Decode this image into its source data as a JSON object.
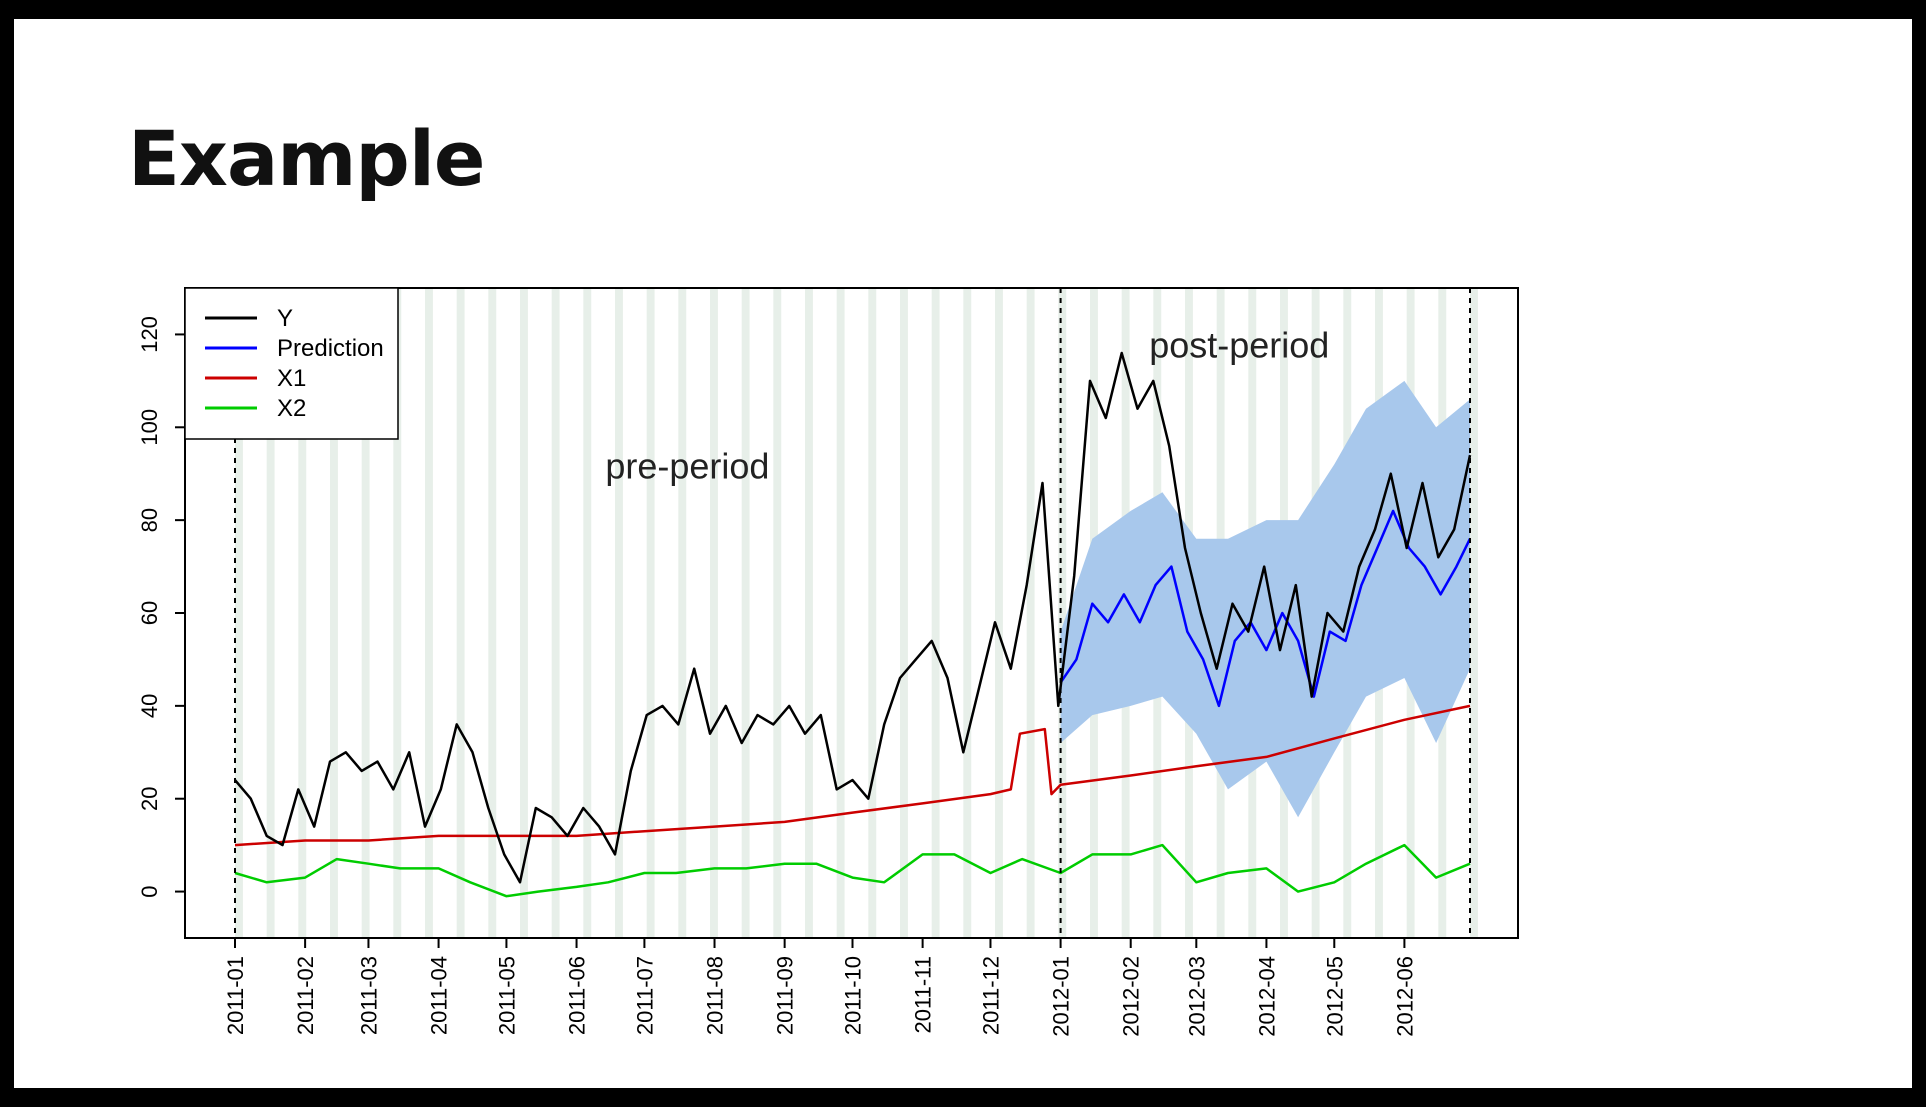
{
  "slide": {
    "title": "Example"
  },
  "chart_data": {
    "type": "line",
    "x_start": "2011-01-01",
    "x_end": "2012-06-30",
    "intervention": "2012-01-01",
    "ylim": [
      -10,
      130
    ],
    "yticks": [
      0,
      20,
      40,
      60,
      80,
      100,
      120
    ],
    "xticks": [
      "2011-01",
      "2011-02",
      "2011-03",
      "2011-04",
      "2011-05",
      "2011-06",
      "2011-07",
      "2011-08",
      "2011-09",
      "2011-10",
      "2011-11",
      "2011-12",
      "2012-01",
      "2012-02",
      "2012-03",
      "2012-04",
      "2012-05",
      "2012-06"
    ],
    "annotations": [
      {
        "text": "pre-period",
        "x": "2011-07-20",
        "y": 89
      },
      {
        "text": "post-period",
        "x": "2012-03-20",
        "y": 115
      }
    ],
    "legend": {
      "position": "top-left",
      "entries": [
        {
          "name": "Y",
          "color": "#000000"
        },
        {
          "name": "Prediction",
          "color": "#0000ff"
        },
        {
          "name": "X1",
          "color": "#cc0000"
        },
        {
          "name": "X2",
          "color": "#00cc00"
        }
      ]
    },
    "band_color": "#a8c8ec",
    "grid": "weekly vertical stripes",
    "series": [
      {
        "name": "Y",
        "color": "#000000",
        "points": [
          [
            "2011-01-01",
            24
          ],
          [
            "2011-01-08",
            20
          ],
          [
            "2011-01-15",
            12
          ],
          [
            "2011-01-22",
            10
          ],
          [
            "2011-01-29",
            22
          ],
          [
            "2011-02-05",
            14
          ],
          [
            "2011-02-12",
            28
          ],
          [
            "2011-02-19",
            30
          ],
          [
            "2011-02-26",
            26
          ],
          [
            "2011-03-05",
            28
          ],
          [
            "2011-03-12",
            22
          ],
          [
            "2011-03-19",
            30
          ],
          [
            "2011-03-26",
            14
          ],
          [
            "2011-04-02",
            22
          ],
          [
            "2011-04-09",
            36
          ],
          [
            "2011-04-16",
            30
          ],
          [
            "2011-04-23",
            18
          ],
          [
            "2011-04-30",
            8
          ],
          [
            "2011-05-07",
            2
          ],
          [
            "2011-05-14",
            18
          ],
          [
            "2011-05-21",
            16
          ],
          [
            "2011-05-28",
            12
          ],
          [
            "2011-06-04",
            18
          ],
          [
            "2011-06-11",
            14
          ],
          [
            "2011-06-18",
            8
          ],
          [
            "2011-06-25",
            26
          ],
          [
            "2011-07-02",
            38
          ],
          [
            "2011-07-09",
            40
          ],
          [
            "2011-07-16",
            36
          ],
          [
            "2011-07-23",
            48
          ],
          [
            "2011-07-30",
            34
          ],
          [
            "2011-08-06",
            40
          ],
          [
            "2011-08-13",
            32
          ],
          [
            "2011-08-20",
            38
          ],
          [
            "2011-08-27",
            36
          ],
          [
            "2011-09-03",
            40
          ],
          [
            "2011-09-10",
            34
          ],
          [
            "2011-09-17",
            38
          ],
          [
            "2011-09-24",
            22
          ],
          [
            "2011-10-01",
            24
          ],
          [
            "2011-10-08",
            20
          ],
          [
            "2011-10-15",
            36
          ],
          [
            "2011-10-22",
            46
          ],
          [
            "2011-10-29",
            50
          ],
          [
            "2011-11-05",
            54
          ],
          [
            "2011-11-12",
            46
          ],
          [
            "2011-11-19",
            30
          ],
          [
            "2011-11-26",
            44
          ],
          [
            "2011-12-03",
            58
          ],
          [
            "2011-12-10",
            48
          ],
          [
            "2011-12-17",
            66
          ],
          [
            "2011-12-24",
            88
          ],
          [
            "2011-12-31",
            40
          ],
          [
            "2012-01-07",
            68
          ],
          [
            "2012-01-14",
            110
          ],
          [
            "2012-01-21",
            102
          ],
          [
            "2012-01-28",
            116
          ],
          [
            "2012-02-04",
            104
          ],
          [
            "2012-02-11",
            110
          ],
          [
            "2012-02-18",
            96
          ],
          [
            "2012-02-25",
            74
          ],
          [
            "2012-03-03",
            60
          ],
          [
            "2012-03-10",
            48
          ],
          [
            "2012-03-17",
            62
          ],
          [
            "2012-03-24",
            56
          ],
          [
            "2012-03-31",
            70
          ],
          [
            "2012-04-07",
            52
          ],
          [
            "2012-04-14",
            66
          ],
          [
            "2012-04-21",
            42
          ],
          [
            "2012-04-28",
            60
          ],
          [
            "2012-05-05",
            56
          ],
          [
            "2012-05-12",
            70
          ],
          [
            "2012-05-19",
            78
          ],
          [
            "2012-05-26",
            90
          ],
          [
            "2012-06-02",
            74
          ],
          [
            "2012-06-09",
            88
          ],
          [
            "2012-06-16",
            72
          ],
          [
            "2012-06-23",
            78
          ],
          [
            "2012-06-30",
            94
          ]
        ]
      },
      {
        "name": "Prediction",
        "color": "#0000ff",
        "points": [
          [
            "2012-01-01",
            45
          ],
          [
            "2012-01-08",
            50
          ],
          [
            "2012-01-15",
            62
          ],
          [
            "2012-01-22",
            58
          ],
          [
            "2012-01-29",
            64
          ],
          [
            "2012-02-05",
            58
          ],
          [
            "2012-02-12",
            66
          ],
          [
            "2012-02-19",
            70
          ],
          [
            "2012-02-26",
            56
          ],
          [
            "2012-03-04",
            50
          ],
          [
            "2012-03-11",
            40
          ],
          [
            "2012-03-18",
            54
          ],
          [
            "2012-03-25",
            58
          ],
          [
            "2012-04-01",
            52
          ],
          [
            "2012-04-08",
            60
          ],
          [
            "2012-04-15",
            54
          ],
          [
            "2012-04-22",
            42
          ],
          [
            "2012-04-29",
            56
          ],
          [
            "2012-05-06",
            54
          ],
          [
            "2012-05-13",
            66
          ],
          [
            "2012-05-20",
            74
          ],
          [
            "2012-05-27",
            82
          ],
          [
            "2012-06-03",
            74
          ],
          [
            "2012-06-10",
            70
          ],
          [
            "2012-06-17",
            64
          ],
          [
            "2012-06-24",
            70
          ],
          [
            "2012-06-30",
            76
          ]
        ]
      },
      {
        "name": "X1",
        "color": "#cc0000",
        "points": [
          [
            "2011-01-01",
            10
          ],
          [
            "2011-02-01",
            11
          ],
          [
            "2011-03-01",
            11
          ],
          [
            "2011-04-01",
            12
          ],
          [
            "2011-05-01",
            12
          ],
          [
            "2011-06-01",
            12
          ],
          [
            "2011-07-01",
            13
          ],
          [
            "2011-08-01",
            14
          ],
          [
            "2011-09-01",
            15
          ],
          [
            "2011-10-01",
            17
          ],
          [
            "2011-11-01",
            19
          ],
          [
            "2011-12-01",
            21
          ],
          [
            "2011-12-10",
            22
          ],
          [
            "2011-12-14",
            34
          ],
          [
            "2011-12-25",
            35
          ],
          [
            "2011-12-28",
            21
          ],
          [
            "2012-01-01",
            23
          ],
          [
            "2012-02-01",
            25
          ],
          [
            "2012-03-01",
            27
          ],
          [
            "2012-04-01",
            29
          ],
          [
            "2012-05-01",
            33
          ],
          [
            "2012-06-01",
            37
          ],
          [
            "2012-06-30",
            40
          ]
        ]
      },
      {
        "name": "X2",
        "color": "#00cc00",
        "points": [
          [
            "2011-01-01",
            4
          ],
          [
            "2011-01-15",
            2
          ],
          [
            "2011-02-01",
            3
          ],
          [
            "2011-02-15",
            7
          ],
          [
            "2011-03-01",
            6
          ],
          [
            "2011-03-15",
            5
          ],
          [
            "2011-04-01",
            5
          ],
          [
            "2011-04-15",
            2
          ],
          [
            "2011-05-01",
            -1
          ],
          [
            "2011-05-15",
            0
          ],
          [
            "2011-06-01",
            1
          ],
          [
            "2011-06-15",
            2
          ],
          [
            "2011-07-01",
            4
          ],
          [
            "2011-07-15",
            4
          ],
          [
            "2011-08-01",
            5
          ],
          [
            "2011-08-15",
            5
          ],
          [
            "2011-09-01",
            6
          ],
          [
            "2011-09-15",
            6
          ],
          [
            "2011-10-01",
            3
          ],
          [
            "2011-10-15",
            2
          ],
          [
            "2011-11-01",
            8
          ],
          [
            "2011-11-15",
            8
          ],
          [
            "2011-12-01",
            4
          ],
          [
            "2011-12-15",
            7
          ],
          [
            "2012-01-01",
            4
          ],
          [
            "2012-01-15",
            8
          ],
          [
            "2012-02-01",
            8
          ],
          [
            "2012-02-15",
            10
          ],
          [
            "2012-03-01",
            2
          ],
          [
            "2012-03-15",
            4
          ],
          [
            "2012-04-01",
            5
          ],
          [
            "2012-04-15",
            0
          ],
          [
            "2012-05-01",
            2
          ],
          [
            "2012-05-15",
            6
          ],
          [
            "2012-06-01",
            10
          ],
          [
            "2012-06-15",
            3
          ],
          [
            "2012-06-30",
            6
          ]
        ]
      }
    ],
    "prediction_interval": {
      "points": [
        [
          "2012-01-01",
          32,
          56
        ],
        [
          "2012-01-15",
          38,
          76
        ],
        [
          "2012-02-01",
          40,
          82
        ],
        [
          "2012-02-15",
          42,
          86
        ],
        [
          "2012-03-01",
          34,
          76
        ],
        [
          "2012-03-15",
          22,
          76
        ],
        [
          "2012-04-01",
          28,
          80
        ],
        [
          "2012-04-15",
          16,
          80
        ],
        [
          "2012-05-01",
          30,
          92
        ],
        [
          "2012-05-15",
          42,
          104
        ],
        [
          "2012-06-01",
          46,
          110
        ],
        [
          "2012-06-15",
          32,
          100
        ],
        [
          "2012-06-30",
          48,
          106
        ]
      ]
    }
  }
}
